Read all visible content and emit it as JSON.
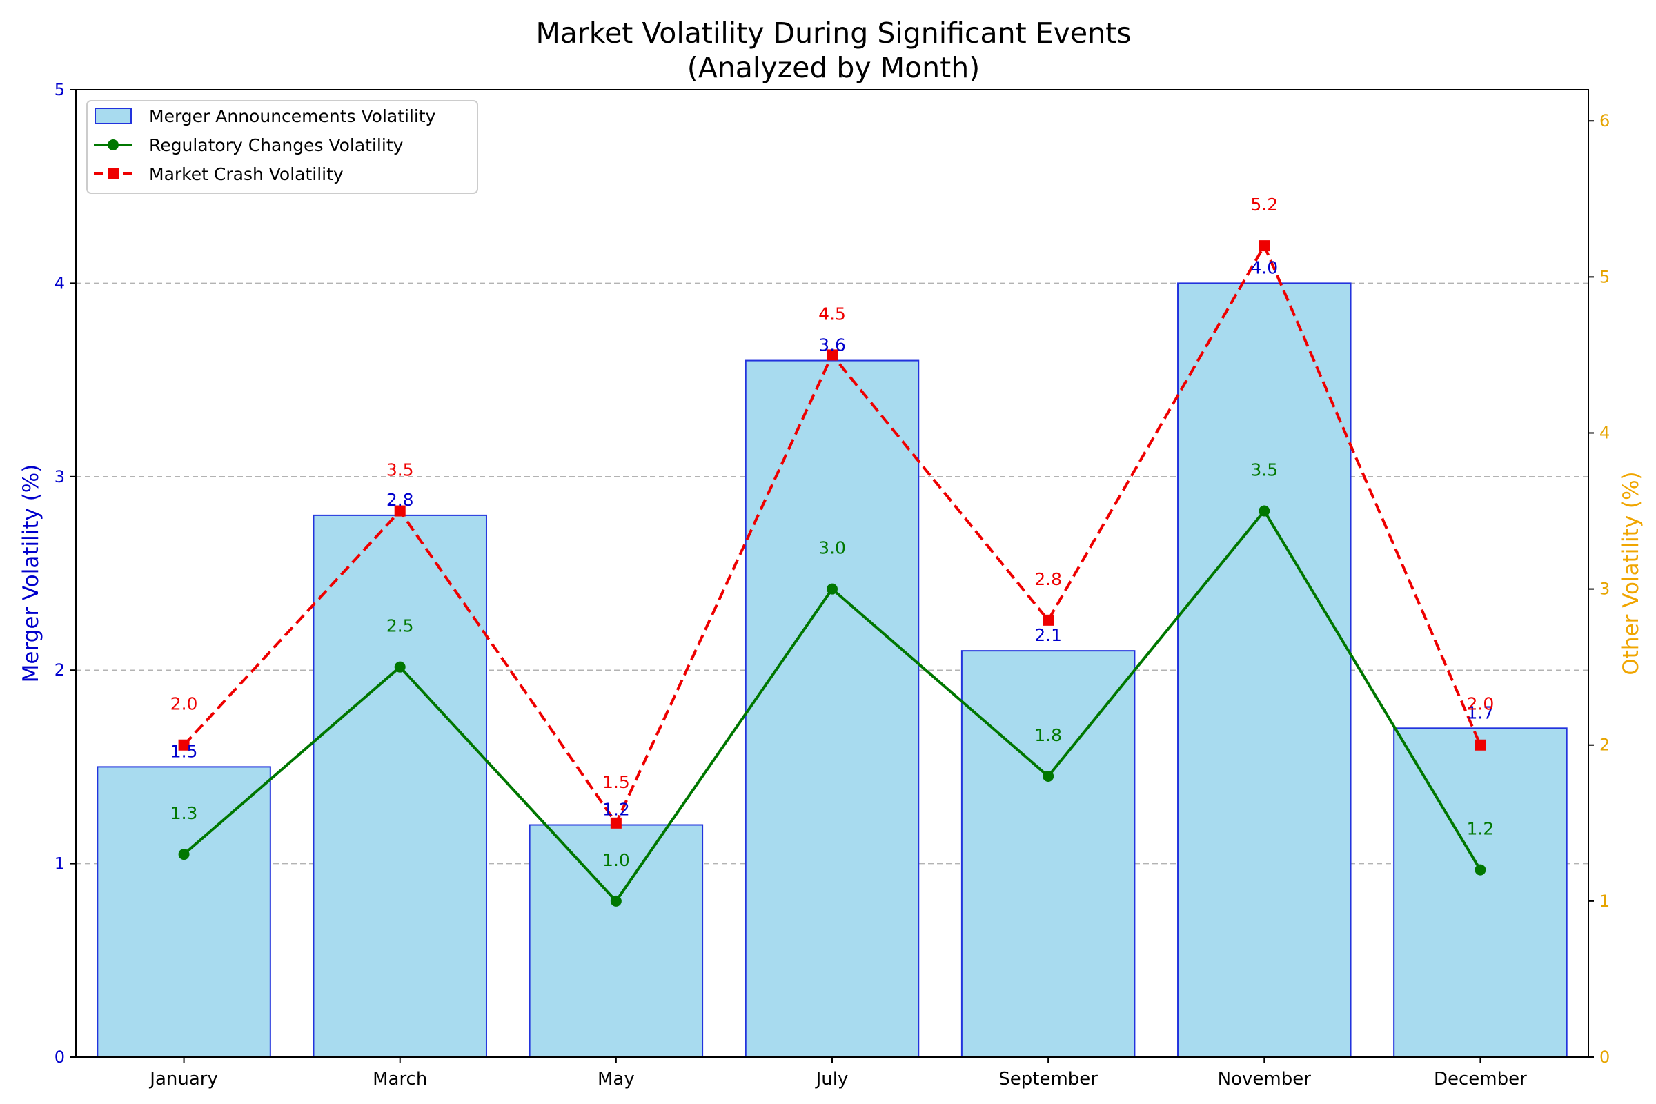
{
  "chart_data": {
    "type": "bar",
    "title": [
      "Market Volatility During Significant Events",
      "(Analyzed by Month)"
    ],
    "categories": [
      "January",
      "March",
      "May",
      "July",
      "September",
      "November",
      "December"
    ],
    "y_left": {
      "label": "Merger Volatility (%)",
      "range": [
        0,
        5
      ],
      "ticks": [
        0,
        1,
        2,
        3,
        4,
        5
      ],
      "color": "#0000cc"
    },
    "y_right": {
      "label": "Other Volatility (%)",
      "range": [
        0,
        6.2
      ],
      "ticks": [
        0,
        1,
        2,
        3,
        4,
        5,
        6
      ],
      "color": "#f0a500"
    },
    "grid": "horizontal dashed",
    "legend": "top-left",
    "series": [
      {
        "name": "Merger Announcements Volatility",
        "type": "bar",
        "axis": "left",
        "values": [
          1.5,
          2.8,
          1.2,
          3.6,
          2.1,
          4.0,
          1.7
        ],
        "labels": [
          "1.5",
          "2.8",
          "1.2",
          "3.6",
          "2.1",
          "4.0",
          "1.7"
        ],
        "fill": "#a8dbef",
        "edge": "#2233dd",
        "label_color": "#0000cc"
      },
      {
        "name": "Regulatory Changes Volatility",
        "type": "line",
        "axis": "right",
        "values": [
          1.3,
          2.5,
          1.0,
          3.0,
          1.8,
          3.5,
          1.2
        ],
        "labels": [
          "1.3",
          "2.5",
          "1.0",
          "3.0",
          "1.8",
          "3.5",
          "1.2"
        ],
        "color": "#007700",
        "marker": "circle",
        "dash": "solid"
      },
      {
        "name": "Market Crash Volatility",
        "type": "line",
        "axis": "right",
        "values": [
          2.0,
          3.5,
          1.5,
          4.5,
          2.8,
          5.2,
          2.0
        ],
        "labels": [
          "2.0",
          "3.5",
          "1.5",
          "4.5",
          "2.8",
          "5.2",
          "2.0"
        ],
        "color": "#ee0000",
        "marker": "square",
        "dash": "dashed"
      }
    ]
  }
}
